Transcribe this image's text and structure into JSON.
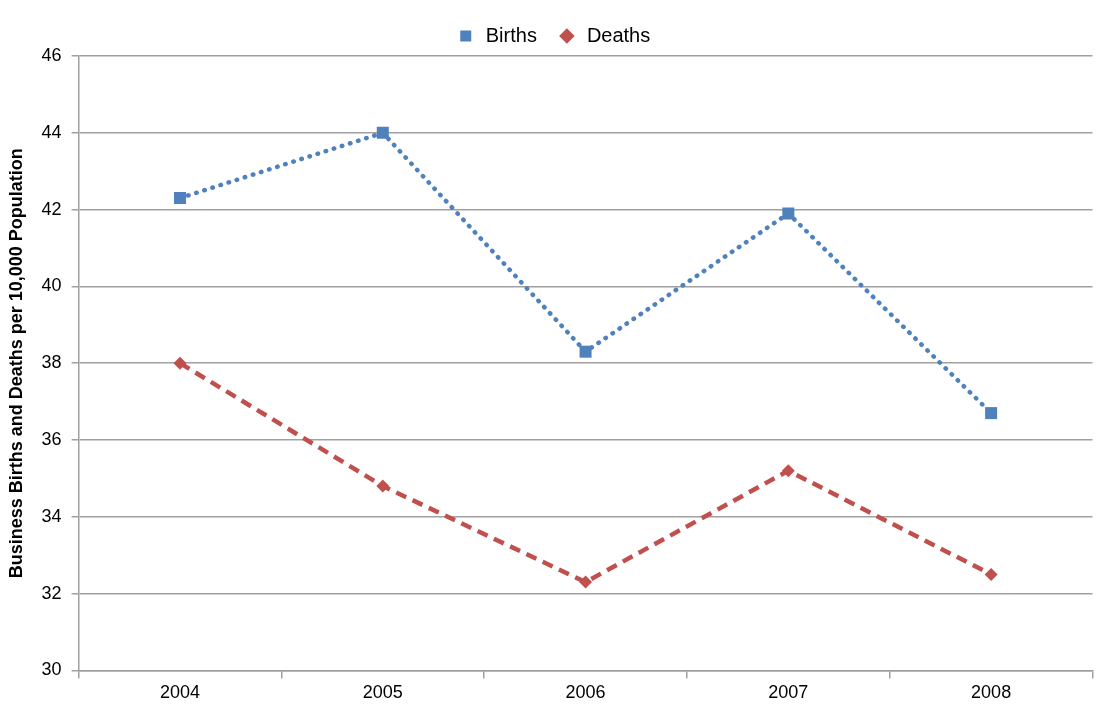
{
  "chart_data": {
    "type": "line",
    "ylabel": "Business Births and Deaths per 10,000 Population",
    "categories": [
      "2004",
      "2005",
      "2006",
      "2007",
      "2008"
    ],
    "series": [
      {
        "name": "Births",
        "color": "#4f81bd",
        "values": [
          42.3,
          44.0,
          38.3,
          41.9,
          36.7
        ],
        "marker": "square",
        "line_style": "dotted"
      },
      {
        "name": "Deaths",
        "color": "#c0504d",
        "values": [
          38.0,
          34.8,
          32.3,
          35.2,
          32.5
        ],
        "marker": "diamond",
        "line_style": "dashed"
      }
    ],
    "ylim": [
      30,
      46
    ],
    "yticks": [
      30,
      32,
      34,
      36,
      38,
      40,
      42,
      44,
      46
    ],
    "grid": "y",
    "legend": "top"
  }
}
